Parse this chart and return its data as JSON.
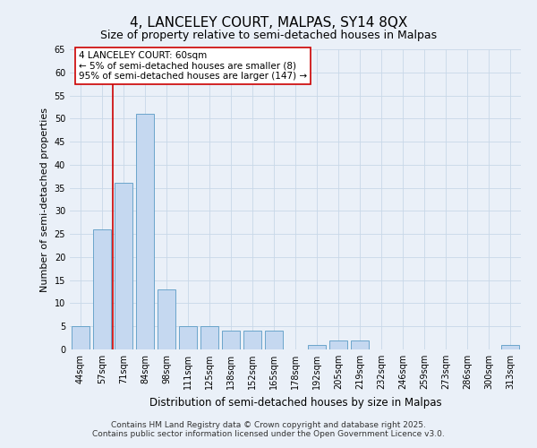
{
  "title": "4, LANCELEY COURT, MALPAS, SY14 8QX",
  "subtitle": "Size of property relative to semi-detached houses in Malpas",
  "xlabel": "Distribution of semi-detached houses by size in Malpas",
  "ylabel": "Number of semi-detached properties",
  "categories": [
    "44sqm",
    "57sqm",
    "71sqm",
    "84sqm",
    "98sqm",
    "111sqm",
    "125sqm",
    "138sqm",
    "152sqm",
    "165sqm",
    "178sqm",
    "192sqm",
    "205sqm",
    "219sqm",
    "232sqm",
    "246sqm",
    "259sqm",
    "273sqm",
    "286sqm",
    "300sqm",
    "313sqm"
  ],
  "values": [
    5,
    26,
    36,
    51,
    13,
    5,
    5,
    4,
    4,
    4,
    0,
    1,
    2,
    2,
    0,
    0,
    0,
    0,
    0,
    0,
    1
  ],
  "bar_color": "#c5d8f0",
  "bar_edge_color": "#5a9bc5",
  "redline_index": 1,
  "annotation_text": "4 LANCELEY COURT: 60sqm\n← 5% of semi-detached houses are smaller (8)\n95% of semi-detached houses are larger (147) →",
  "annotation_box_color": "#ffffff",
  "annotation_box_edge": "#cc0000",
  "redline_color": "#cc0000",
  "ylim": [
    0,
    65
  ],
  "yticks": [
    0,
    5,
    10,
    15,
    20,
    25,
    30,
    35,
    40,
    45,
    50,
    55,
    60,
    65
  ],
  "grid_color": "#c8d8e8",
  "background_color": "#eaf0f8",
  "footnote": "Contains HM Land Registry data © Crown copyright and database right 2025.\nContains public sector information licensed under the Open Government Licence v3.0.",
  "title_fontsize": 11,
  "subtitle_fontsize": 9,
  "xlabel_fontsize": 8.5,
  "ylabel_fontsize": 8,
  "tick_fontsize": 7,
  "annotation_fontsize": 7.5,
  "footnote_fontsize": 6.5
}
